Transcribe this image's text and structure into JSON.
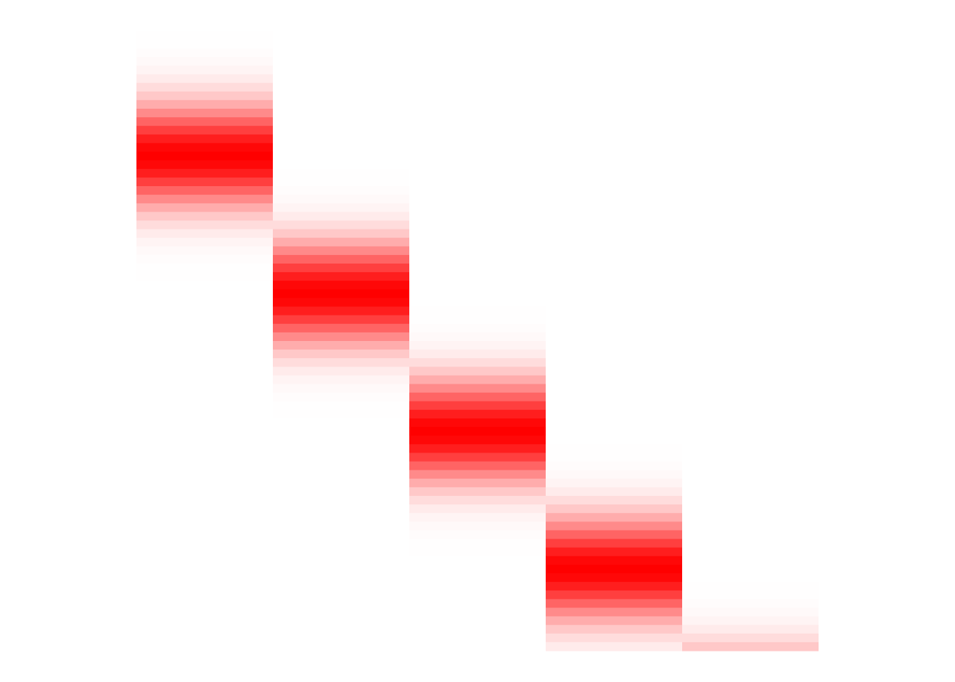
{
  "chart_data": {
    "type": "heatmap",
    "colors": {
      "low": "#ffffff",
      "high": "#ff0000"
    },
    "columns": [
      {
        "peak_y": 14.5,
        "spread": 4.0
      },
      {
        "peak_y": 30.5,
        "spread": 4.0
      },
      {
        "peak_y": 46.5,
        "spread": 4.0
      },
      {
        "peak_y": 62.5,
        "spread": 4.0
      },
      {
        "peak_y": 78.5,
        "spread": 4.0
      }
    ],
    "y_range": [
      0,
      72
    ],
    "y_resolution": 72
  }
}
